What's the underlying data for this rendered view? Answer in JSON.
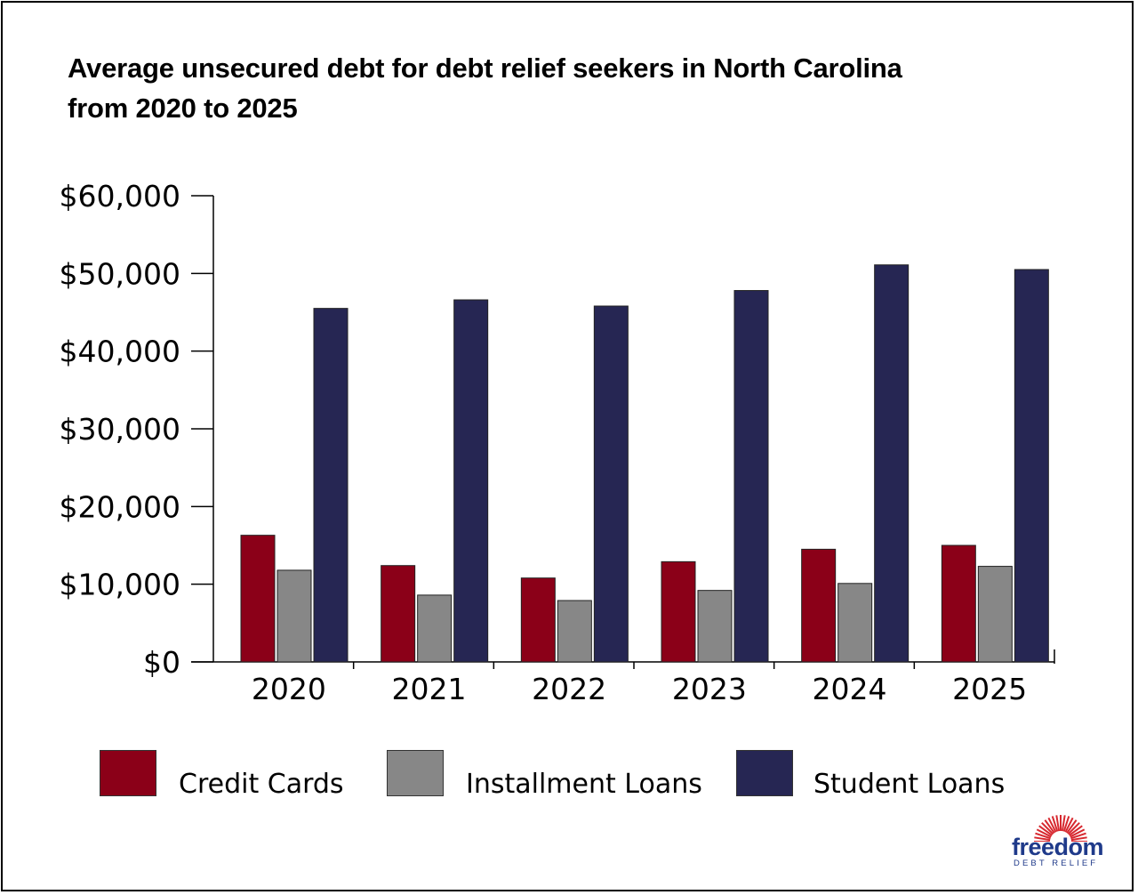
{
  "chart_data": {
    "type": "bar",
    "title_lines": [
      "Average unsecured debt for debt relief seekers in North Carolina",
      "from 2020 to 2025"
    ],
    "categories": [
      "2020",
      "2021",
      "2022",
      "2023",
      "2024",
      "2025"
    ],
    "series": [
      {
        "name": "Credit Cards",
        "color": "#8b0018",
        "values": [
          16300,
          12400,
          10800,
          12900,
          14500,
          15000
        ]
      },
      {
        "name": "Installment Loans",
        "color": "#878787",
        "values": [
          11800,
          8600,
          7900,
          9200,
          10100,
          12300
        ]
      },
      {
        "name": "Student Loans",
        "color": "#262653",
        "values": [
          45500,
          46600,
          45800,
          47800,
          51100,
          50500
        ]
      }
    ],
    "ylim": [
      0,
      60000
    ],
    "yticks": [
      0,
      10000,
      20000,
      30000,
      40000,
      50000,
      60000
    ],
    "ytick_labels": [
      "$0",
      "$10,000",
      "$20,000",
      "$30,000",
      "$40,000",
      "$50,000",
      "$60,000"
    ],
    "xlabel": "",
    "ylabel": "",
    "grid": false,
    "legend_position": "bottom"
  },
  "logo": {
    "word": "freedom",
    "subtitle": "DEBT RELIEF",
    "burst_color": "#d7282f",
    "text_color": "#1f3a8a"
  }
}
